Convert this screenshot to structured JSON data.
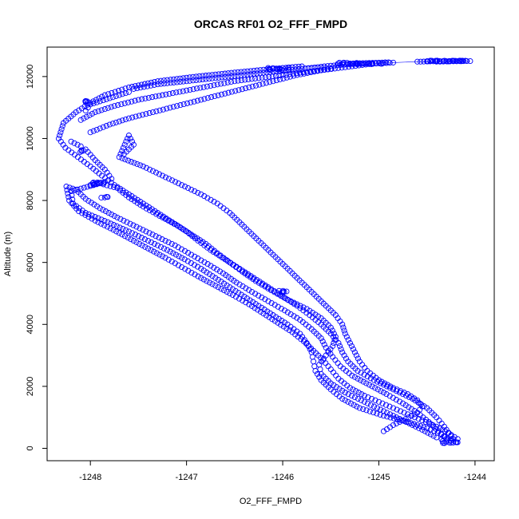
{
  "chart_data": {
    "type": "scatter",
    "title": "ORCAS RF01 O2_FFF_FMPD",
    "xlabel": "O2_FFF_FMPD",
    "ylabel": "Altitude (m)",
    "xlim": [
      -1248.45,
      -1243.8
    ],
    "ylim": [
      -400,
      12950
    ],
    "x_ticks": [
      -1248,
      -1247,
      -1246,
      -1245,
      -1244
    ],
    "x_tick_labels": [
      "-1248",
      "-1247",
      "-1246",
      "-1245",
      "-1244"
    ],
    "y_ticks": [
      0,
      2000,
      4000,
      6000,
      8000,
      10000,
      12000
    ],
    "y_tick_labels": [
      "0",
      "2000",
      "4000",
      "6000",
      "8000",
      "10000",
      "12000"
    ],
    "marker": "open-circle",
    "color": "#0000ff",
    "grid": false,
    "series": [
      {
        "name": "",
        "points": [
          [
            -1244.05,
            12500
          ],
          [
            -1244.4,
            12480
          ],
          [
            -1244.9,
            12460
          ],
          [
            -1245.3,
            12420
          ],
          [
            -1245.8,
            12330
          ],
          [
            -1246.1,
            12250
          ],
          [
            -1246.5,
            12130
          ],
          [
            -1246.9,
            12000
          ],
          [
            -1247.3,
            11850
          ],
          [
            -1247.6,
            11650
          ],
          [
            -1247.85,
            11400
          ],
          [
            -1248.0,
            11150
          ],
          [
            -1248.15,
            10850
          ],
          [
            -1248.28,
            10500
          ],
          [
            -1248.33,
            10000
          ],
          [
            -1248.26,
            9700
          ],
          [
            -1248.13,
            9400
          ],
          [
            -1248.0,
            9100
          ],
          [
            -1247.88,
            8800
          ],
          [
            -1247.75,
            8500
          ],
          [
            -1247.6,
            8200
          ],
          [
            -1247.45,
            7900
          ],
          [
            -1247.3,
            7600
          ],
          [
            -1247.15,
            7300
          ],
          [
            -1247.0,
            7000
          ],
          [
            -1246.88,
            6700
          ],
          [
            -1246.75,
            6400
          ],
          [
            -1246.6,
            6100
          ],
          [
            -1246.45,
            5800
          ],
          [
            -1246.3,
            5500
          ],
          [
            -1246.15,
            5200
          ],
          [
            -1246.0,
            4900
          ],
          [
            -1245.85,
            4600
          ],
          [
            -1245.72,
            4300
          ],
          [
            -1245.6,
            4000
          ],
          [
            -1245.5,
            3700
          ],
          [
            -1245.42,
            3400
          ],
          [
            -1245.38,
            3100
          ],
          [
            -1245.32,
            2800
          ],
          [
            -1245.22,
            2500
          ],
          [
            -1245.05,
            2200
          ],
          [
            -1244.85,
            1900
          ],
          [
            -1244.65,
            1600
          ],
          [
            -1244.5,
            1300
          ],
          [
            -1244.4,
            1000
          ],
          [
            -1244.32,
            700
          ],
          [
            -1244.25,
            400
          ],
          [
            -1244.2,
            200
          ],
          [
            -1244.18,
            300
          ],
          [
            -1244.28,
            500
          ],
          [
            -1244.4,
            700
          ],
          [
            -1244.55,
            900
          ],
          [
            -1244.7,
            1100
          ],
          [
            -1244.85,
            1300
          ],
          [
            -1245.0,
            1500
          ],
          [
            -1245.15,
            1700
          ],
          [
            -1245.3,
            1950
          ],
          [
            -1245.42,
            2250
          ],
          [
            -1245.5,
            2550
          ],
          [
            -1245.58,
            2850
          ],
          [
            -1245.68,
            3150
          ],
          [
            -1245.78,
            3450
          ],
          [
            -1245.9,
            3750
          ],
          [
            -1246.05,
            4050
          ],
          [
            -1246.2,
            4350
          ],
          [
            -1246.35,
            4650
          ],
          [
            -1246.52,
            4950
          ],
          [
            -1246.7,
            5250
          ],
          [
            -1246.88,
            5550
          ],
          [
            -1247.05,
            5850
          ],
          [
            -1247.22,
            6150
          ],
          [
            -1247.4,
            6450
          ],
          [
            -1247.58,
            6750
          ],
          [
            -1247.76,
            7050
          ],
          [
            -1247.95,
            7350
          ],
          [
            -1248.12,
            7650
          ],
          [
            -1248.22,
            8000
          ],
          [
            -1248.25,
            8450
          ],
          [
            -1248.15,
            8350
          ],
          [
            -1248.05,
            8050
          ],
          [
            -1247.9,
            7750
          ],
          [
            -1247.72,
            7450
          ],
          [
            -1247.52,
            7150
          ],
          [
            -1247.32,
            6850
          ],
          [
            -1247.12,
            6550
          ],
          [
            -1246.95,
            6250
          ],
          [
            -1246.78,
            5950
          ],
          [
            -1246.62,
            5650
          ],
          [
            -1246.48,
            5350
          ],
          [
            -1246.32,
            5050
          ],
          [
            -1246.15,
            4750
          ],
          [
            -1245.98,
            4450
          ],
          [
            -1245.82,
            4150
          ],
          [
            -1245.7,
            3850
          ],
          [
            -1245.6,
            3550
          ],
          [
            -1245.55,
            3250
          ],
          [
            -1245.48,
            2950
          ],
          [
            -1245.4,
            2650
          ],
          [
            -1245.28,
            2350
          ],
          [
            -1245.1,
            2050
          ],
          [
            -1244.92,
            1750
          ],
          [
            -1244.75,
            1450
          ],
          [
            -1244.6,
            1150
          ],
          [
            -1244.48,
            850
          ],
          [
            -1244.38,
            550
          ],
          [
            -1244.3,
            300
          ],
          [
            -1244.25,
            250
          ],
          [
            -1244.35,
            450
          ],
          [
            -1244.5,
            650
          ],
          [
            -1244.7,
            850
          ],
          [
            -1244.95,
            1050
          ],
          [
            -1245.2,
            1300
          ],
          [
            -1245.38,
            1600
          ],
          [
            -1245.5,
            1900
          ],
          [
            -1245.6,
            2200
          ],
          [
            -1245.66,
            2500
          ],
          [
            -1245.68,
            2800
          ],
          [
            -1245.7,
            3100
          ],
          [
            -1245.75,
            3400
          ],
          [
            -1245.82,
            3700
          ],
          [
            -1245.95,
            4000
          ],
          [
            -1246.1,
            4300
          ],
          [
            -1246.25,
            4600
          ],
          [
            -1246.4,
            4900
          ],
          [
            -1246.55,
            5200
          ],
          [
            -1246.7,
            5500
          ],
          [
            -1246.85,
            5800
          ],
          [
            -1247.02,
            6100
          ],
          [
            -1247.2,
            6400
          ],
          [
            -1247.4,
            6700
          ],
          [
            -1247.6,
            7000
          ],
          [
            -1247.82,
            7300
          ],
          [
            -1248.05,
            7600
          ],
          [
            -1248.18,
            7900
          ],
          [
            -1248.2,
            8300
          ],
          [
            -1247.9,
            8550
          ],
          [
            -1247.72,
            8400
          ],
          [
            -1247.6,
            8100
          ],
          [
            -1247.45,
            7800
          ],
          [
            -1247.28,
            7500
          ],
          [
            -1247.1,
            7200
          ],
          [
            -1246.95,
            6900
          ],
          [
            -1246.8,
            6600
          ],
          [
            -1246.68,
            6300
          ],
          [
            -1246.55,
            6000
          ],
          [
            -1246.42,
            5700
          ],
          [
            -1246.28,
            5400
          ],
          [
            -1246.12,
            5100
          ],
          [
            -1245.95,
            4800
          ],
          [
            -1245.75,
            4500
          ],
          [
            -1245.6,
            4200
          ],
          [
            -1245.5,
            3900
          ],
          [
            -1245.45,
            3600
          ],
          [
            -1245.48,
            3300
          ],
          [
            -1245.55,
            3000
          ],
          [
            -1245.62,
            2700
          ],
          [
            -1245.6,
            2400
          ],
          [
            -1245.5,
            2100
          ],
          [
            -1245.35,
            1800
          ],
          [
            -1245.15,
            1500
          ],
          [
            -1244.95,
            1200
          ],
          [
            -1244.75,
            900
          ],
          [
            -1244.55,
            600
          ],
          [
            -1244.4,
            350
          ],
          [
            -1247.65,
            9500
          ],
          [
            -1247.55,
            9800
          ],
          [
            -1247.6,
            10100
          ],
          [
            -1247.7,
            9400
          ],
          [
            -1247.45,
            9100
          ],
          [
            -1247.25,
            8800
          ],
          [
            -1247.05,
            8500
          ],
          [
            -1246.85,
            8200
          ],
          [
            -1246.68,
            7900
          ],
          [
            -1246.55,
            7600
          ],
          [
            -1246.45,
            7300
          ],
          [
            -1246.35,
            7000
          ],
          [
            -1246.25,
            6700
          ],
          [
            -1246.15,
            6400
          ],
          [
            -1246.05,
            6100
          ],
          [
            -1245.95,
            5800
          ],
          [
            -1245.85,
            5500
          ],
          [
            -1245.75,
            5200
          ],
          [
            -1245.65,
            4900
          ],
          [
            -1245.55,
            4600
          ],
          [
            -1245.45,
            4300
          ],
          [
            -1245.38,
            4000
          ],
          [
            -1245.35,
            3700
          ],
          [
            -1245.3,
            3400
          ],
          [
            -1245.25,
            3100
          ],
          [
            -1245.2,
            2800
          ],
          [
            -1245.12,
            2500
          ],
          [
            -1245.0,
            2200
          ],
          [
            -1244.85,
            1950
          ],
          [
            -1244.7,
            1750
          ],
          [
            -1244.6,
            1550
          ],
          [
            -1244.55,
            1350
          ],
          [
            -1244.6,
            1150
          ],
          [
            -1244.72,
            950
          ],
          [
            -1244.85,
            750
          ],
          [
            -1244.95,
            550
          ],
          [
            -1248.0,
            10200
          ],
          [
            -1247.8,
            10450
          ],
          [
            -1247.6,
            10650
          ],
          [
            -1247.35,
            10850
          ],
          [
            -1247.1,
            11050
          ],
          [
            -1246.85,
            11250
          ],
          [
            -1246.6,
            11450
          ],
          [
            -1246.35,
            11650
          ],
          [
            -1246.1,
            11850
          ],
          [
            -1245.85,
            12050
          ],
          [
            -1245.6,
            12200
          ],
          [
            -1245.35,
            12300
          ],
          [
            -1245.1,
            12400
          ],
          [
            -1244.85,
            12450
          ],
          [
            -1248.1,
            10600
          ],
          [
            -1247.95,
            10850
          ],
          [
            -1247.75,
            11050
          ],
          [
            -1247.5,
            11250
          ],
          [
            -1247.25,
            11400
          ],
          [
            -1247.0,
            11550
          ],
          [
            -1246.75,
            11700
          ],
          [
            -1246.5,
            11850
          ],
          [
            -1246.25,
            11950
          ],
          [
            -1246.0,
            12050
          ],
          [
            -1245.75,
            12150
          ],
          [
            -1245.5,
            12250
          ],
          [
            -1248.2,
            9900
          ],
          [
            -1248.1,
            9750
          ],
          [
            -1248.05,
            9650
          ],
          [
            -1247.95,
            9300
          ],
          [
            -1247.85,
            9000
          ],
          [
            -1247.78,
            8700
          ],
          [
            -1247.85,
            8600
          ],
          [
            -1248.0,
            8500
          ],
          [
            -1247.6,
            11500
          ],
          [
            -1247.8,
            11300
          ],
          [
            -1248.0,
            11100
          ],
          [
            -1248.05,
            10900
          ],
          [
            -1247.55,
            11600
          ],
          [
            -1247.3,
            11750
          ],
          [
            -1247.0,
            11850
          ],
          [
            -1246.7,
            11950
          ],
          [
            -1246.4,
            12050
          ],
          [
            -1246.1,
            12150
          ],
          [
            -1245.8,
            12250
          ],
          [
            -1245.5,
            12350
          ],
          [
            -1245.2,
            12420
          ],
          [
            -1244.6,
            12480
          ],
          [
            -1244.3,
            12500
          ],
          [
            -1244.1,
            12510
          ]
        ]
      }
    ],
    "dense_clusters": [
      {
        "x": -1246.05,
        "y": 12250,
        "spread_x": 0.12,
        "spread_y": 40,
        "n": 14
      },
      {
        "x": -1245.2,
        "y": 12420,
        "spread_x": 0.25,
        "spread_y": 30,
        "n": 22
      },
      {
        "x": -1244.3,
        "y": 12500,
        "spread_x": 0.2,
        "spread_y": 15,
        "n": 20
      },
      {
        "x": -1244.25,
        "y": 250,
        "spread_x": 0.1,
        "spread_y": 80,
        "n": 14
      },
      {
        "x": -1247.9,
        "y": 8550,
        "spread_x": 0.08,
        "spread_y": 40,
        "n": 8
      },
      {
        "x": -1246.0,
        "y": 5050,
        "spread_x": 0.05,
        "spread_y": 40,
        "n": 6
      },
      {
        "x": -1248.05,
        "y": 11150,
        "spread_x": 0.03,
        "spread_y": 60,
        "n": 5
      },
      {
        "x": -1248.1,
        "y": 9600,
        "spread_x": 0.03,
        "spread_y": 40,
        "n": 4
      },
      {
        "x": -1247.85,
        "y": 8100,
        "spread_x": 0.04,
        "spread_y": 30,
        "n": 4
      }
    ]
  }
}
